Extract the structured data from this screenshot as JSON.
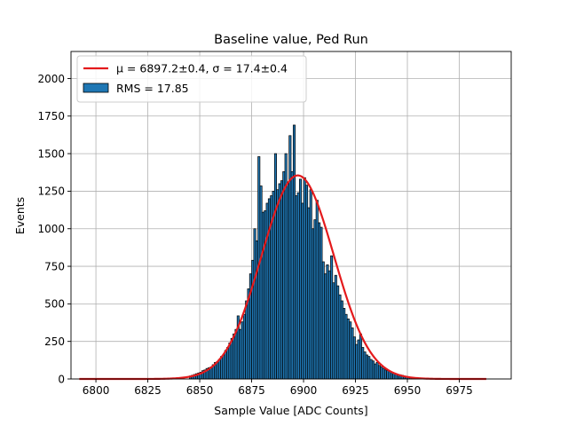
{
  "chart_data": {
    "type": "bar",
    "title": "Baseline value, Ped Run",
    "xlabel": "Sample Value [ADC Counts]",
    "ylabel": "Events",
    "xlim": [
      6788,
      7000
    ],
    "ylim": [
      0,
      2180
    ],
    "xticks": [
      6800,
      6825,
      6850,
      6875,
      6900,
      6925,
      6950,
      6975
    ],
    "yticks": [
      0,
      250,
      500,
      750,
      1000,
      1250,
      1500,
      1750,
      2000
    ],
    "grid": true,
    "legend": {
      "placement": "top-left",
      "entries": [
        {
          "label": "μ = 6897.2±0.4, σ = 17.4±0.4",
          "kind": "line",
          "color": "#e41a1c"
        },
        {
          "label": "RMS = 17.85",
          "kind": "patch",
          "color": "#1f77b4"
        }
      ]
    },
    "histogram": {
      "name": "RMS = 17.85",
      "bin_width": 1,
      "bin_starts": [
        6845,
        6846,
        6847,
        6848,
        6849,
        6850,
        6851,
        6852,
        6853,
        6854,
        6855,
        6856,
        6857,
        6858,
        6859,
        6860,
        6861,
        6862,
        6863,
        6864,
        6865,
        6866,
        6867,
        6868,
        6869,
        6870,
        6871,
        6872,
        6873,
        6874,
        6875,
        6876,
        6877,
        6878,
        6879,
        6880,
        6881,
        6882,
        6883,
        6884,
        6885,
        6886,
        6887,
        6888,
        6889,
        6890,
        6891,
        6892,
        6893,
        6894,
        6895,
        6896,
        6897,
        6898,
        6899,
        6900,
        6901,
        6902,
        6903,
        6904,
        6905,
        6906,
        6907,
        6908,
        6909,
        6910,
        6911,
        6912,
        6913,
        6914,
        6915,
        6916,
        6917,
        6918,
        6919,
        6920,
        6921,
        6922,
        6923,
        6924,
        6925,
        6926,
        6927,
        6928,
        6929,
        6930,
        6931,
        6932,
        6933,
        6934,
        6935,
        6936,
        6937,
        6938,
        6939,
        6940,
        6941,
        6942,
        6943,
        6944,
        6945,
        6946,
        6947,
        6948,
        6949,
        6950,
        6951,
        6952,
        6953,
        6954,
        6955
      ],
      "values": [
        20,
        25,
        30,
        35,
        40,
        45,
        55,
        60,
        70,
        75,
        80,
        95,
        110,
        115,
        130,
        150,
        160,
        190,
        210,
        240,
        270,
        300,
        330,
        420,
        330,
        380,
        430,
        520,
        600,
        700,
        790,
        1000,
        920,
        1480,
        1285,
        1110,
        1120,
        1170,
        1200,
        1220,
        1250,
        1500,
        1260,
        1300,
        1320,
        1380,
        1500,
        1300,
        1620,
        1380,
        1690,
        1220,
        1240,
        1330,
        1170,
        1340,
        1290,
        1140,
        1260,
        1000,
        1060,
        1190,
        1040,
        1010,
        780,
        700,
        760,
        720,
        820,
        640,
        690,
        620,
        560,
        520,
        470,
        430,
        400,
        380,
        340,
        280,
        230,
        260,
        300,
        210,
        180,
        160,
        150,
        130,
        120,
        100,
        110,
        90,
        80,
        70,
        60,
        55,
        50,
        45,
        40,
        35,
        30,
        28,
        25,
        20,
        18,
        15,
        12,
        10,
        8,
        6,
        4
      ]
    },
    "fit": {
      "type": "gaussian",
      "label": "μ = 6897.2±0.4, σ = 17.4±0.4",
      "mu": 6897.2,
      "sigma": 17.4,
      "amplitude": 1355,
      "x_range": [
        6792,
        6988
      ],
      "color": "#e41a1c"
    }
  }
}
